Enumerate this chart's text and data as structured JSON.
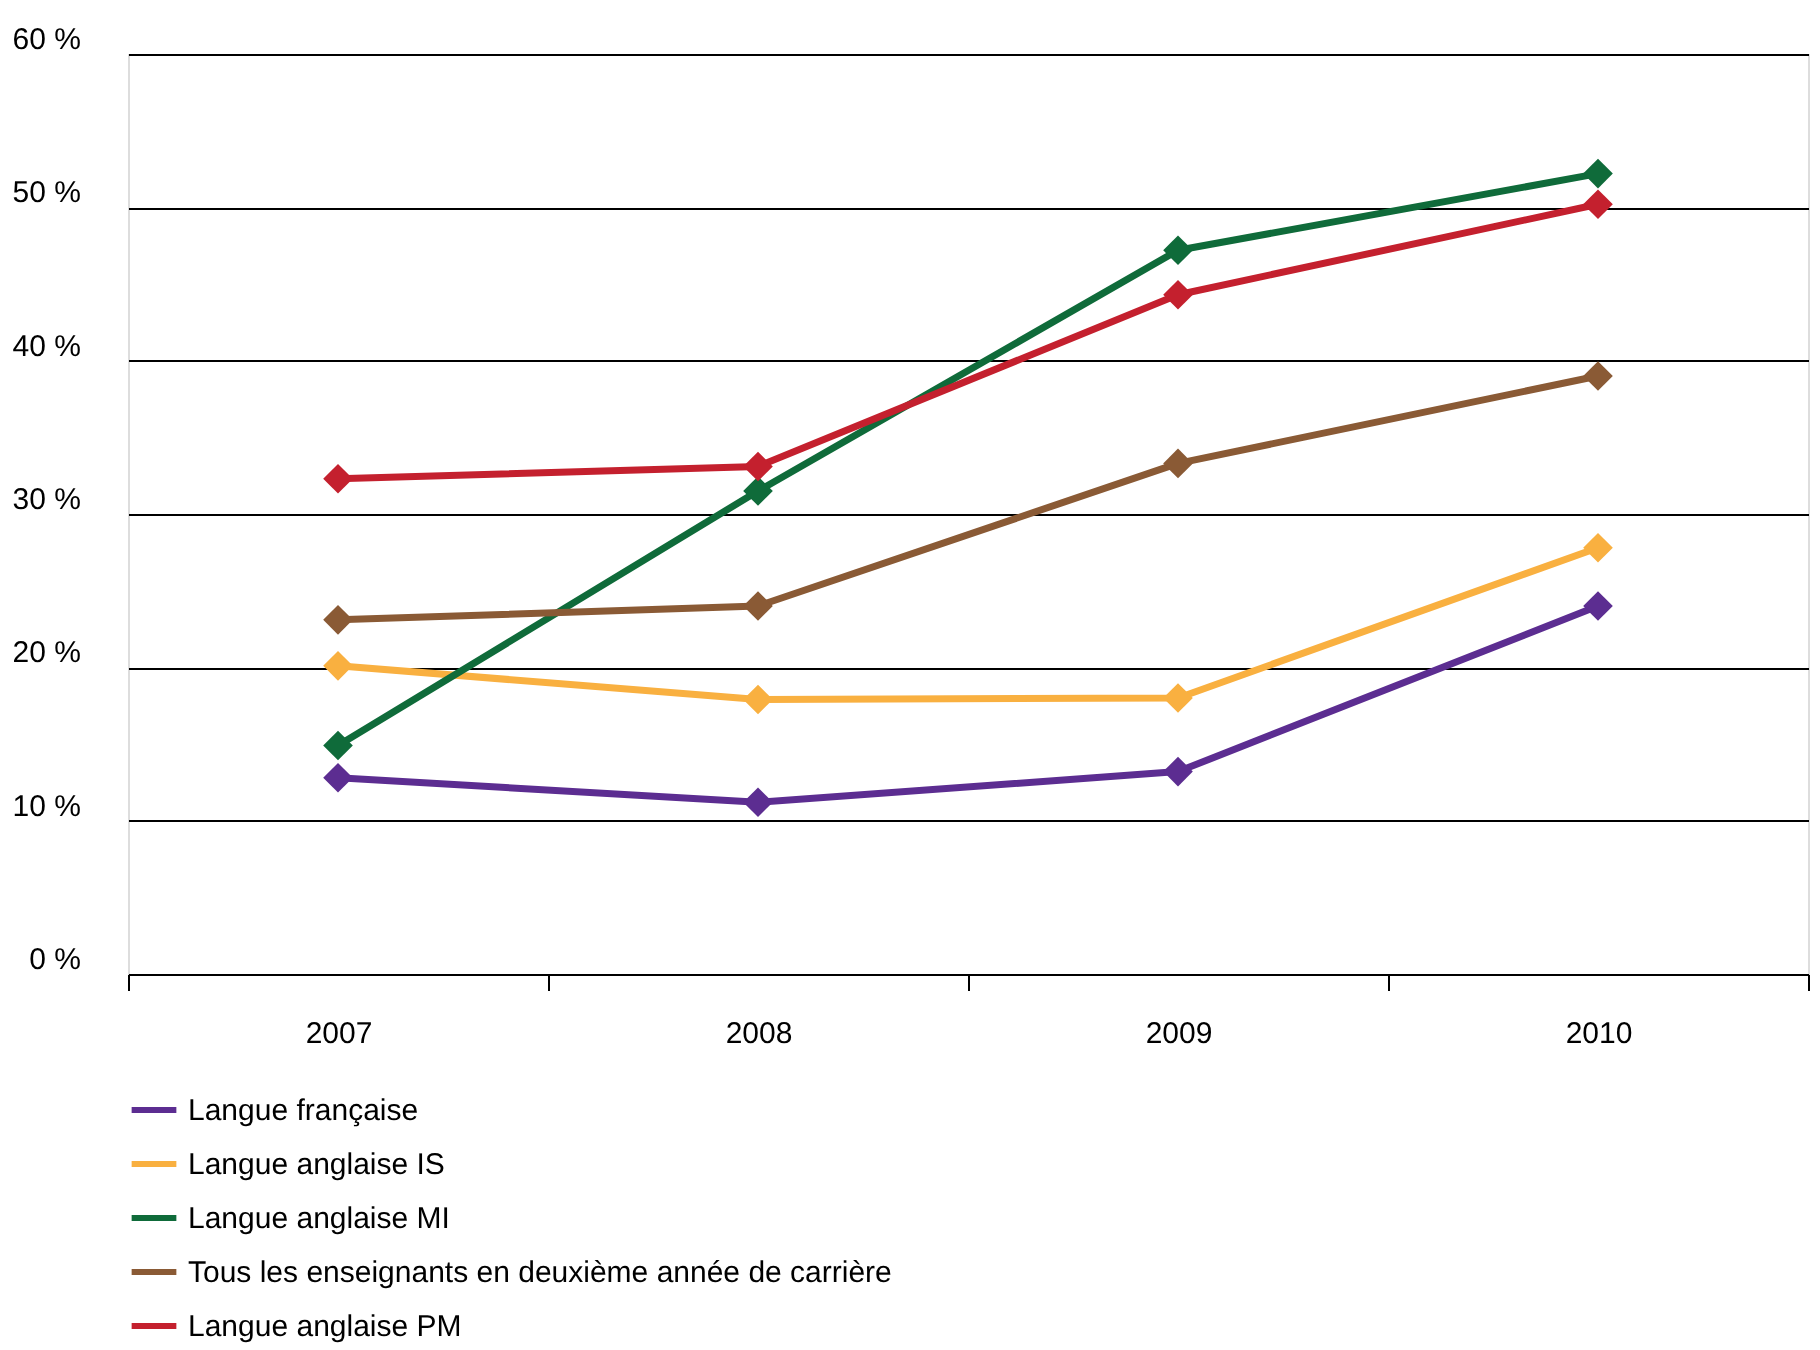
{
  "chart_data": {
    "type": "line",
    "categories": [
      "2007",
      "2008",
      "2009",
      "2010"
    ],
    "ylim": [
      0,
      60
    ],
    "yticks": [
      {
        "value": 0,
        "label": "0 %"
      },
      {
        "value": 10,
        "label": "10 %"
      },
      {
        "value": 20,
        "label": "20 %"
      },
      {
        "value": 30,
        "label": "30 %"
      },
      {
        "value": 40,
        "label": "40 %"
      },
      {
        "value": 50,
        "label": "50 %"
      },
      {
        "value": 60,
        "label": "60 %"
      }
    ],
    "grid": "y",
    "legend": "bottom",
    "marker": "diamond",
    "line_style": "solid",
    "series": [
      {
        "name": "Langue française",
        "color": "#5c2d91",
        "values": [
          12.8,
          11.2,
          13.2,
          24.0
        ]
      },
      {
        "name": "Langue anglaise IS",
        "color": "#f9b040",
        "values": [
          20.1,
          17.9,
          18.0,
          27.8
        ]
      },
      {
        "name": "Langue anglaise MI",
        "color": "#0f6b3a",
        "values": [
          14.9,
          31.5,
          47.2,
          52.2
        ]
      },
      {
        "name": "Tous les enseignants en deuxième année de carrière",
        "color": "#8a5a35",
        "values": [
          23.1,
          24.0,
          33.3,
          39.0
        ]
      },
      {
        "name": "Langue anglaise PM",
        "color": "#c4202e",
        "values": [
          32.3,
          33.1,
          44.3,
          50.2
        ]
      }
    ]
  }
}
